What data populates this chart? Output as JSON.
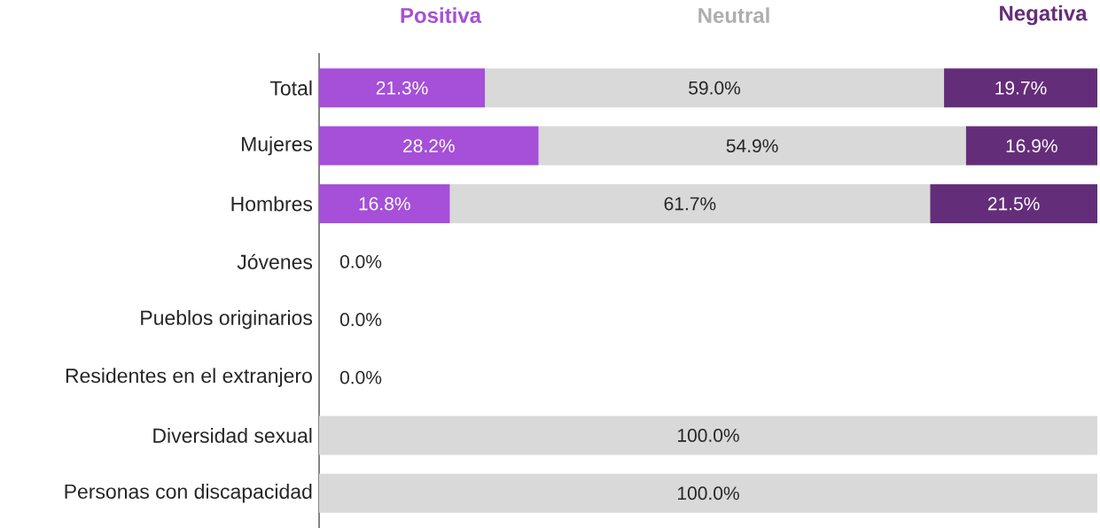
{
  "chart_data": {
    "type": "bar",
    "orientation": "horizontal",
    "stacked": true,
    "legend": "top",
    "tick_labels": "y",
    "categories": [
      "Total",
      "Mujeres",
      "Hombres",
      "Jóvenes",
      "Pueblos originarios",
      "Residentes en el extranjero",
      "Diversidad sexual",
      "Personas con discapacidad"
    ],
    "series": [
      {
        "name": "Positiva",
        "color": "#a64fd8",
        "values": [
          21.3,
          28.2,
          16.8,
          0,
          0,
          0,
          null,
          null
        ],
        "value_labels": [
          "21.3%",
          "28.2%",
          "16.8%",
          "0.0%",
          "0.0%",
          "0.0%",
          null,
          null
        ]
      },
      {
        "name": "Neutral",
        "color": "#d9d9d9",
        "values": [
          59.0,
          54.9,
          61.7,
          null,
          null,
          null,
          100,
          100
        ],
        "value_labels": [
          "59.0%",
          "54.9%",
          "61.7%",
          null,
          null,
          null,
          "100.0%",
          "100.0%"
        ]
      },
      {
        "name": "Negativa",
        "color": "#642d7a",
        "values": [
          19.7,
          16.9,
          21.5,
          null,
          null,
          null,
          null,
          null
        ],
        "value_labels": [
          "19.7%",
          "16.9%",
          "21.5%",
          null,
          null,
          null,
          null,
          null
        ]
      }
    ]
  }
}
